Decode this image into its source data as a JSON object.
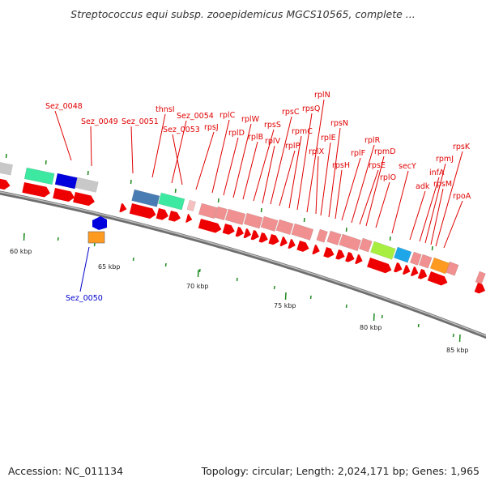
{
  "header": {
    "title": "Streptococcus equi subsp. zooepidemicus MGCS10565, complete ..."
  },
  "footer": {
    "accession": "Accession: NC_011134",
    "summary": "Topology: circular; Length: 2,024,171 bp; Genes: 1,965"
  },
  "colors": {
    "label_red": "#e00000",
    "label_blue": "#0000cc",
    "tick_green": "#1e8a1e",
    "backbone": "#888888"
  },
  "ruler": {
    "labels": [
      "60 kbp",
      "65 kbp",
      "70 kbp",
      "75 kbp",
      "80 kbp",
      "85 kbp"
    ]
  },
  "genes": [
    {
      "name": "Sez_0048",
      "color": "red"
    },
    {
      "name": "Sez_0049",
      "color": "red"
    },
    {
      "name": "Sez_0050",
      "color": "blue"
    },
    {
      "name": "Sez_0051",
      "color": "red"
    },
    {
      "name": "thnsI",
      "color": "red"
    },
    {
      "name": "Sez_0054",
      "color": "red"
    },
    {
      "name": "Sez_0053",
      "color": "red"
    },
    {
      "name": "rpsJ",
      "color": "red"
    },
    {
      "name": "rplC",
      "color": "red"
    },
    {
      "name": "rplD",
      "color": "red"
    },
    {
      "name": "rplW",
      "color": "red"
    },
    {
      "name": "rplB",
      "color": "red"
    },
    {
      "name": "rpsS",
      "color": "red"
    },
    {
      "name": "rplV",
      "color": "red"
    },
    {
      "name": "rpsC",
      "color": "red"
    },
    {
      "name": "rplP",
      "color": "red"
    },
    {
      "name": "rpmC",
      "color": "red"
    },
    {
      "name": "rpsQ",
      "color": "red"
    },
    {
      "name": "rplN",
      "color": "red"
    },
    {
      "name": "rplX",
      "color": "red"
    },
    {
      "name": "rplE",
      "color": "red"
    },
    {
      "name": "rpsN",
      "color": "red"
    },
    {
      "name": "rpsH",
      "color": "red"
    },
    {
      "name": "rplF",
      "color": "red"
    },
    {
      "name": "rplR",
      "color": "red"
    },
    {
      "name": "rpsE",
      "color": "red"
    },
    {
      "name": "rpmD",
      "color": "red"
    },
    {
      "name": "rplO",
      "color": "red"
    },
    {
      "name": "secY",
      "color": "red"
    },
    {
      "name": "adk",
      "color": "red"
    },
    {
      "name": "infA",
      "color": "red"
    },
    {
      "name": "rpmJ",
      "color": "red"
    },
    {
      "name": "rpsM",
      "color": "red"
    },
    {
      "name": "rpsK",
      "color": "red"
    },
    {
      "name": "rpoA",
      "color": "red"
    }
  ]
}
